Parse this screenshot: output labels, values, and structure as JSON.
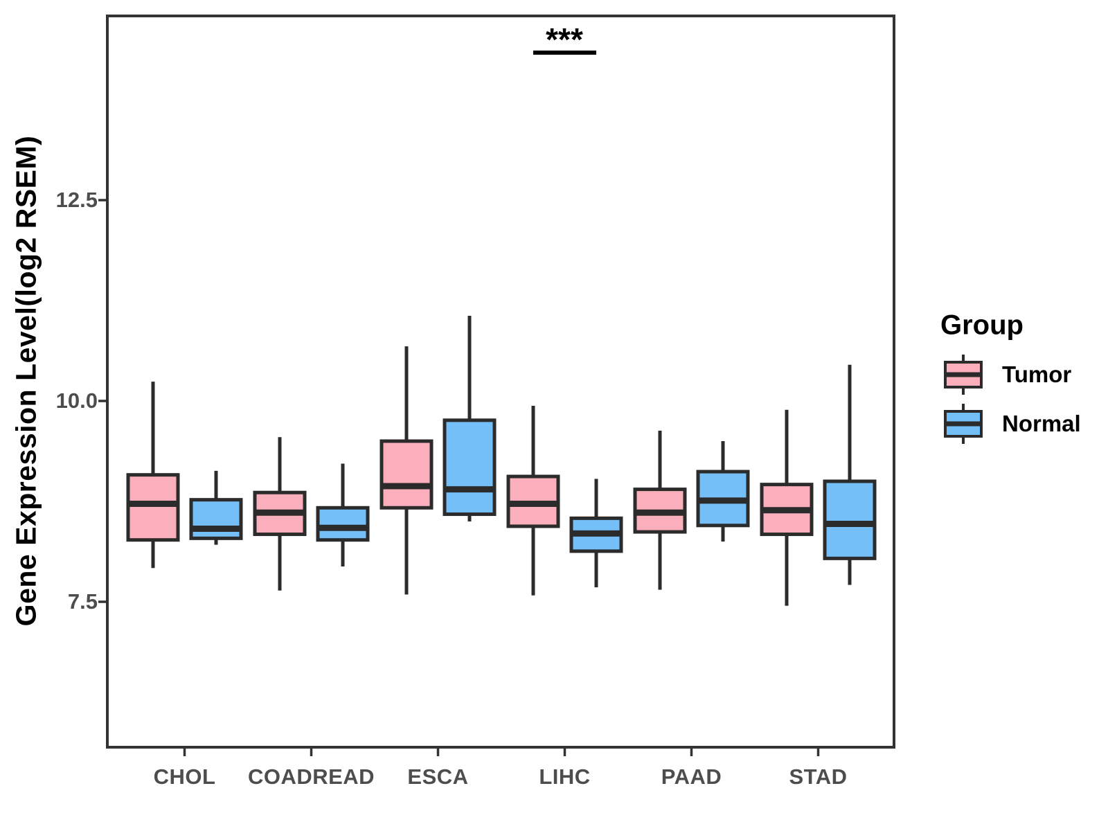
{
  "y_axis": {
    "title": "Gene Expression Level(log2 RSEM)",
    "tick_labels": [
      "12.5",
      "10.0",
      "7.5"
    ]
  },
  "x_axis": {
    "labels": [
      "CHOL",
      "COADREAD",
      "ESCA",
      "LIHC",
      "PAAD",
      "STAD"
    ]
  },
  "legend": {
    "title": "Group",
    "items": [
      {
        "label": "Tumor",
        "color": "#FBAFBC"
      },
      {
        "label": "Normal",
        "color": "#74BFF8"
      }
    ]
  },
  "significance": {
    "label": "***",
    "category": "LIHC"
  },
  "colors": {
    "tumor_fill": "#FBAFBC",
    "normal_fill": "#74BFF8",
    "box_border": "#2b2b2b",
    "panel_border": "#333333",
    "axis_text": "#4d4d4d",
    "background": "#ffffff"
  },
  "chart_data": {
    "type": "boxplot",
    "title": "",
    "xlabel": "",
    "ylabel": "Gene Expression Level(log2 RSEM)",
    "categories": [
      "CHOL",
      "COADREAD",
      "ESCA",
      "LIHC",
      "PAAD",
      "STAD"
    ],
    "groups": [
      "Tumor",
      "Normal"
    ],
    "y_ticks": [
      12.5,
      10.0,
      7.5
    ],
    "ylim": [
      5.7,
      14.8
    ],
    "grid": false,
    "legend_position": "right",
    "annotations": [
      {
        "type": "significance",
        "label": "***",
        "category": "LIHC",
        "between": [
          "Tumor",
          "Normal"
        ]
      }
    ],
    "series": [
      {
        "name": "Tumor",
        "color": "#FBAFBC",
        "boxes": [
          {
            "category": "CHOL",
            "min": 7.92,
            "q1": 8.27,
            "median": 8.72,
            "q3": 9.08,
            "max": 10.24
          },
          {
            "category": "COADREAD",
            "min": 7.64,
            "q1": 8.34,
            "median": 8.61,
            "q3": 8.86,
            "max": 9.55
          },
          {
            "category": "ESCA",
            "min": 7.59,
            "q1": 8.67,
            "median": 8.94,
            "q3": 9.5,
            "max": 10.68
          },
          {
            "category": "LIHC",
            "min": 7.58,
            "q1": 8.44,
            "median": 8.72,
            "q3": 9.06,
            "max": 9.94
          },
          {
            "category": "PAAD",
            "min": 7.65,
            "q1": 8.37,
            "median": 8.61,
            "q3": 8.9,
            "max": 9.63
          },
          {
            "category": "STAD",
            "min": 7.45,
            "q1": 8.34,
            "median": 8.64,
            "q3": 8.96,
            "max": 9.89
          }
        ]
      },
      {
        "name": "Normal",
        "color": "#74BFF8",
        "boxes": [
          {
            "category": "CHOL",
            "min": 8.21,
            "q1": 8.29,
            "median": 8.41,
            "q3": 8.77,
            "max": 9.13
          },
          {
            "category": "COADREAD",
            "min": 7.94,
            "q1": 8.27,
            "median": 8.42,
            "q3": 8.67,
            "max": 9.22
          },
          {
            "category": "ESCA",
            "min": 8.5,
            "q1": 8.59,
            "median": 8.9,
            "q3": 9.76,
            "max": 11.06
          },
          {
            "category": "LIHC",
            "min": 7.68,
            "q1": 8.13,
            "median": 8.35,
            "q3": 8.54,
            "max": 9.03
          },
          {
            "category": "PAAD",
            "min": 8.25,
            "q1": 8.45,
            "median": 8.76,
            "q3": 9.12,
            "max": 9.5
          },
          {
            "category": "STAD",
            "min": 7.71,
            "q1": 8.04,
            "median": 8.47,
            "q3": 9.0,
            "max": 10.45
          }
        ]
      }
    ]
  }
}
